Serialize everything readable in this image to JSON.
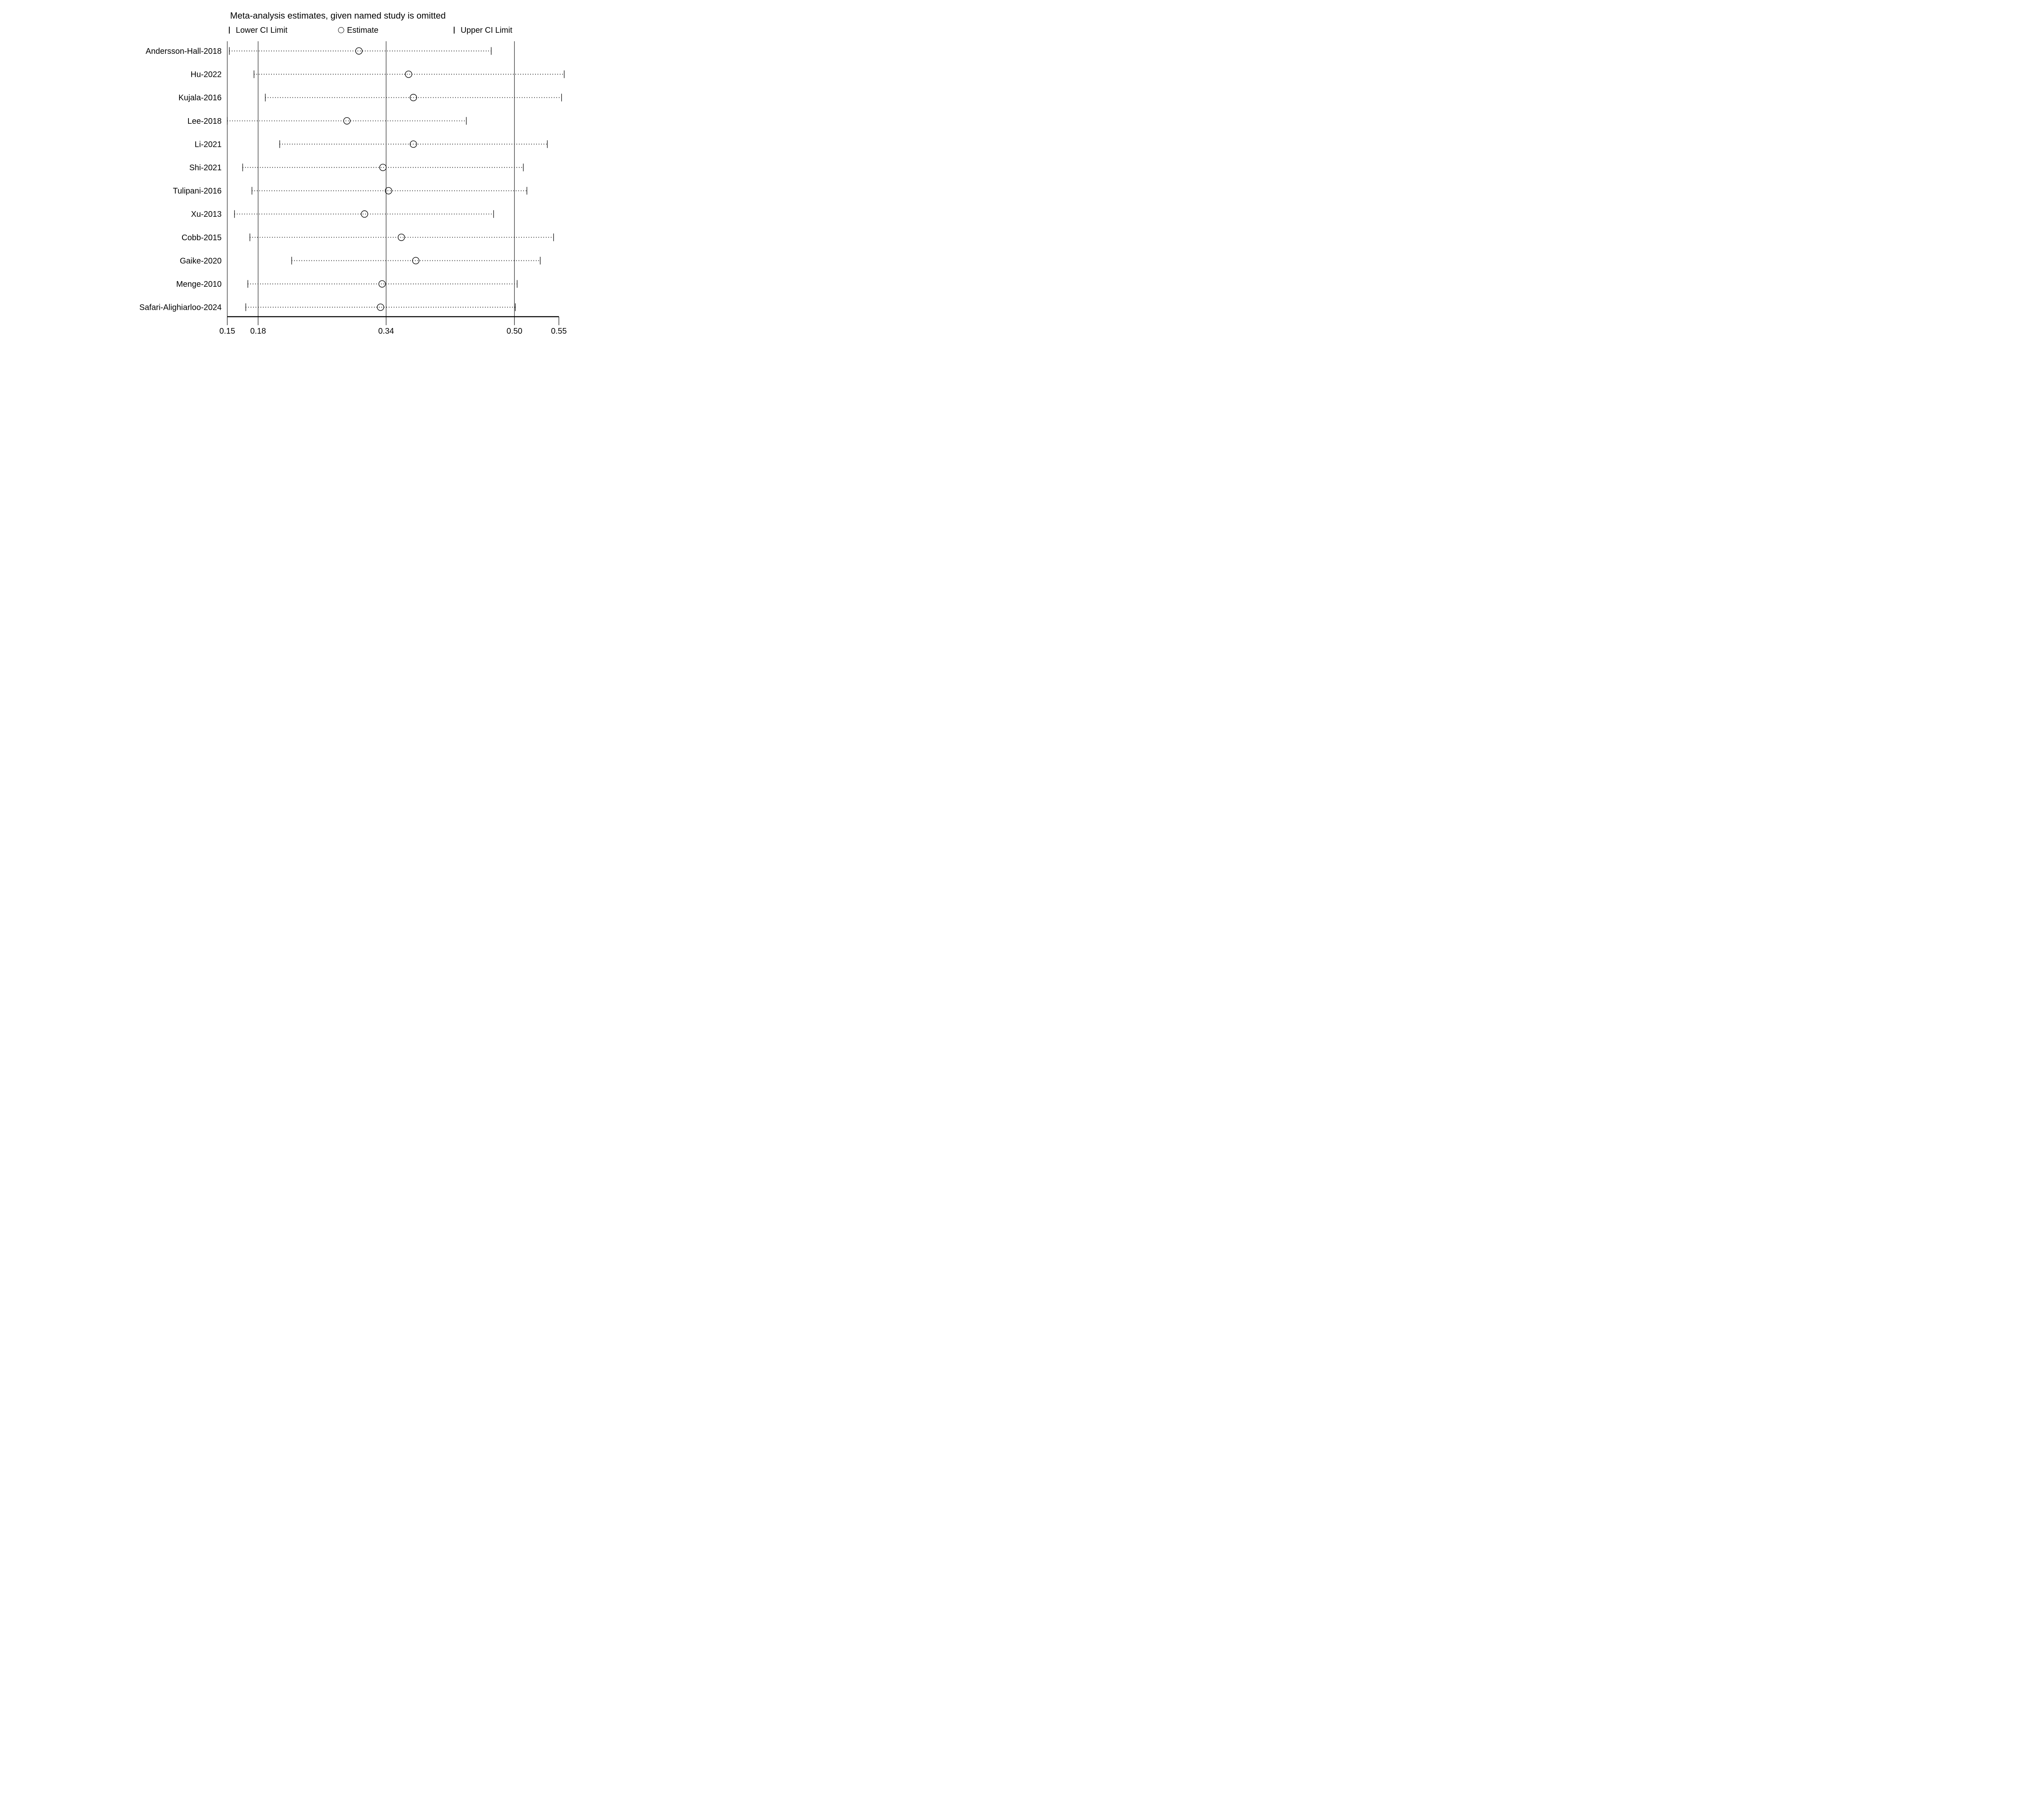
{
  "colors": {
    "ink": "#000000",
    "background": "#ffffff"
  },
  "chart_data": {
    "type": "forest",
    "title": "Meta-analysis estimates, given named study is omitted",
    "legend": [
      {
        "marker": "lower-ci-tick",
        "label": "Lower CI Limit"
      },
      {
        "marker": "estimate-circle",
        "label": "Estimate"
      },
      {
        "marker": "upper-ci-tick",
        "label": "Upper CI Limit"
      }
    ],
    "xaxis": {
      "min": 0.15,
      "max": 0.55,
      "ticks": [
        {
          "label": "0.15",
          "value": 0.15,
          "pos": 0.0
        },
        {
          "label": "0.18",
          "value": 0.18,
          "pos": 0.093
        },
        {
          "label": "0.34",
          "value": 0.34,
          "pos": 0.479
        },
        {
          "label": "0.50",
          "value": 0.5,
          "pos": 0.866
        },
        {
          "label": "0.55",
          "value": 0.55,
          "pos": 1.0
        }
      ],
      "reference_line_values": [
        0.18,
        0.34,
        0.5
      ]
    },
    "studies": [
      {
        "label": "Andersson-Hall-2018",
        "lower": 0.152,
        "estimate": 0.306,
        "upper": 0.471
      },
      {
        "label": "Hu-2022",
        "lower": 0.176,
        "estimate": 0.368,
        "upper": 0.556
      },
      {
        "label": "Kujala-2016",
        "lower": 0.189,
        "estimate": 0.374,
        "upper": 0.553
      },
      {
        "label": "Lee-2018",
        "lower": 0.15,
        "estimate": 0.291,
        "upper": 0.44
      },
      {
        "label": "Li-2021",
        "lower": 0.207,
        "estimate": 0.374,
        "upper": 0.537
      },
      {
        "label": "Shi-2021",
        "lower": 0.165,
        "estimate": 0.336,
        "upper": 0.51
      },
      {
        "label": "Tulipani-2016",
        "lower": 0.174,
        "estimate": 0.343,
        "upper": 0.514
      },
      {
        "label": "Xu-2013",
        "lower": 0.157,
        "estimate": 0.313,
        "upper": 0.474
      },
      {
        "label": "Cobb-2015",
        "lower": 0.172,
        "estimate": 0.359,
        "upper": 0.544
      },
      {
        "label": "Gaike-2020",
        "lower": 0.222,
        "estimate": 0.377,
        "upper": 0.529
      },
      {
        "label": "Menge-2010",
        "lower": 0.17,
        "estimate": 0.335,
        "upper": 0.503
      },
      {
        "label": "Safari-Alighiarloo-2024",
        "lower": 0.168,
        "estimate": 0.333,
        "upper": 0.501
      }
    ]
  }
}
